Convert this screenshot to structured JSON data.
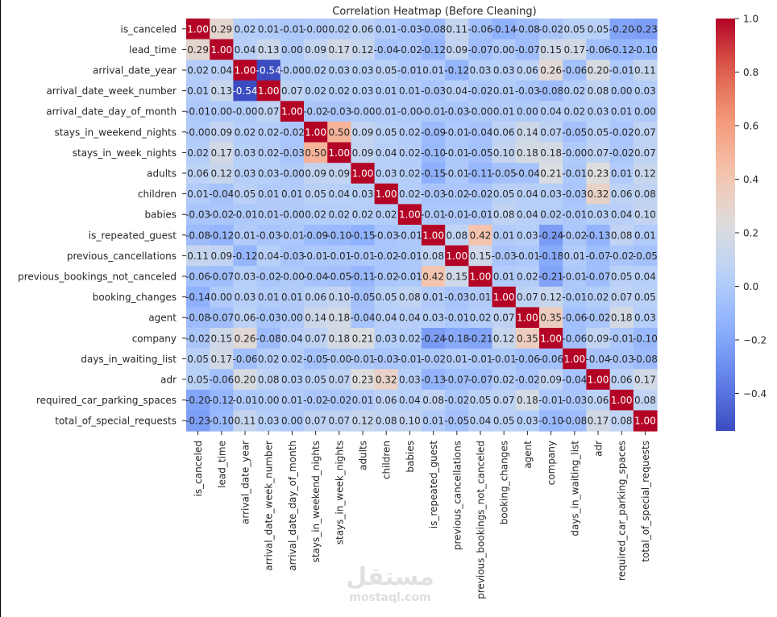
{
  "chart_data": {
    "type": "heatmap",
    "title": "Correlation Heatmap (Before Cleaning)",
    "labels": [
      "is_canceled",
      "lead_time",
      "arrival_date_year",
      "arrival_date_week_number",
      "arrival_date_day_of_month",
      "stays_in_weekend_nights",
      "stays_in_week_nights",
      "adults",
      "children",
      "babies",
      "is_repeated_guest",
      "previous_cancellations",
      "previous_bookings_not_canceled",
      "booking_changes",
      "agent",
      "company",
      "days_in_waiting_list",
      "adr",
      "required_car_parking_spaces",
      "total_of_special_requests"
    ],
    "values": [
      [
        1.0,
        0.29,
        0.02,
        0.01,
        -0.01,
        -0.0,
        0.02,
        0.06,
        0.01,
        -0.03,
        -0.08,
        0.11,
        -0.06,
        -0.14,
        -0.08,
        -0.02,
        0.05,
        0.05,
        -0.2,
        -0.23
      ],
      [
        0.29,
        1.0,
        0.04,
        0.13,
        0.0,
        0.09,
        0.17,
        0.12,
        -0.04,
        -0.02,
        -0.12,
        0.09,
        -0.07,
        0.0,
        -0.07,
        0.15,
        0.17,
        -0.06,
        -0.12,
        -0.1
      ],
      [
        0.02,
        0.04,
        1.0,
        -0.54,
        -0.0,
        0.02,
        0.03,
        0.03,
        0.05,
        -0.01,
        0.01,
        -0.12,
        0.03,
        0.03,
        0.06,
        0.26,
        -0.06,
        0.2,
        -0.01,
        0.11
      ],
      [
        0.01,
        0.13,
        -0.54,
        1.0,
        0.07,
        0.02,
        0.02,
        0.03,
        0.01,
        0.01,
        -0.03,
        0.04,
        -0.02,
        0.01,
        -0.03,
        -0.08,
        0.02,
        0.08,
        0.0,
        0.03
      ],
      [
        -0.01,
        0.0,
        -0.0,
        0.07,
        1.0,
        -0.02,
        -0.03,
        -0.0,
        0.01,
        -0.0,
        -0.01,
        -0.03,
        -0.0,
        0.01,
        0.0,
        0.04,
        0.02,
        0.03,
        0.01,
        0.0
      ],
      [
        -0.0,
        0.09,
        0.02,
        0.02,
        -0.02,
        1.0,
        0.5,
        0.09,
        0.05,
        0.02,
        -0.09,
        -0.01,
        -0.04,
        0.06,
        0.14,
        0.07,
        -0.05,
        0.05,
        -0.02,
        0.07
      ],
      [
        0.02,
        0.17,
        0.03,
        0.02,
        -0.03,
        0.5,
        1.0,
        0.09,
        0.04,
        0.02,
        -0.1,
        -0.01,
        -0.05,
        0.1,
        0.18,
        0.18,
        -0.0,
        0.07,
        -0.02,
        0.07
      ],
      [
        0.06,
        0.12,
        0.03,
        0.03,
        -0.0,
        0.09,
        0.09,
        1.0,
        0.03,
        0.02,
        -0.15,
        -0.01,
        -0.11,
        -0.05,
        -0.04,
        0.21,
        -0.01,
        0.23,
        0.01,
        0.12
      ],
      [
        0.01,
        -0.04,
        0.05,
        0.01,
        0.01,
        0.05,
        0.04,
        0.03,
        1.0,
        0.02,
        -0.03,
        -0.02,
        -0.02,
        0.05,
        0.04,
        0.03,
        -0.03,
        0.32,
        0.06,
        0.08
      ],
      [
        -0.03,
        -0.02,
        -0.01,
        0.01,
        -0.0,
        0.02,
        0.02,
        0.02,
        0.02,
        1.0,
        -0.01,
        -0.01,
        -0.01,
        0.08,
        0.04,
        0.02,
        -0.01,
        0.03,
        0.04,
        0.1
      ],
      [
        -0.08,
        -0.12,
        0.01,
        -0.03,
        -0.01,
        -0.09,
        -0.1,
        -0.15,
        -0.03,
        -0.01,
        1.0,
        0.08,
        0.42,
        0.01,
        0.03,
        -0.24,
        -0.02,
        -0.13,
        0.08,
        0.01
      ],
      [
        0.11,
        0.09,
        -0.12,
        0.04,
        -0.03,
        -0.01,
        -0.01,
        -0.01,
        -0.02,
        -0.01,
        0.08,
        1.0,
        0.15,
        -0.03,
        -0.01,
        -0.18,
        0.01,
        -0.07,
        -0.02,
        -0.05
      ],
      [
        -0.06,
        -0.07,
        0.03,
        -0.02,
        -0.0,
        -0.04,
        -0.05,
        -0.11,
        -0.02,
        -0.01,
        0.42,
        0.15,
        1.0,
        0.01,
        0.02,
        -0.21,
        -0.01,
        -0.07,
        0.05,
        0.04
      ],
      [
        -0.14,
        0.0,
        0.03,
        0.01,
        0.01,
        0.06,
        0.1,
        -0.05,
        0.05,
        0.08,
        0.01,
        -0.03,
        0.01,
        1.0,
        0.07,
        0.12,
        -0.01,
        0.02,
        0.07,
        0.05
      ],
      [
        -0.08,
        -0.07,
        0.06,
        -0.03,
        0.0,
        0.14,
        0.18,
        -0.04,
        0.04,
        0.04,
        0.03,
        -0.01,
        0.02,
        0.07,
        1.0,
        0.35,
        -0.06,
        -0.02,
        0.18,
        0.03
      ],
      [
        -0.02,
        0.15,
        0.26,
        -0.08,
        0.04,
        0.07,
        0.18,
        0.21,
        0.03,
        0.02,
        -0.24,
        -0.18,
        -0.21,
        0.12,
        0.35,
        1.0,
        -0.06,
        0.09,
        -0.01,
        -0.1
      ],
      [
        0.05,
        0.17,
        -0.06,
        0.02,
        0.02,
        -0.05,
        -0.0,
        -0.01,
        -0.03,
        -0.01,
        -0.02,
        0.01,
        -0.01,
        -0.01,
        -0.06,
        -0.06,
        1.0,
        -0.04,
        -0.03,
        -0.08
      ],
      [
        0.05,
        -0.06,
        0.2,
        0.08,
        0.03,
        0.05,
        0.07,
        0.23,
        0.32,
        0.03,
        -0.13,
        -0.07,
        -0.07,
        0.02,
        -0.02,
        0.09,
        -0.04,
        1.0,
        0.06,
        0.17
      ],
      [
        -0.2,
        -0.12,
        -0.01,
        0.0,
        0.01,
        -0.02,
        -0.02,
        0.01,
        0.06,
        0.04,
        0.08,
        -0.02,
        0.05,
        0.07,
        0.18,
        -0.01,
        -0.03,
        0.06,
        1.0,
        0.08
      ],
      [
        -0.23,
        -0.1,
        0.11,
        0.03,
        0.0,
        0.07,
        0.07,
        0.12,
        0.08,
        0.1,
        0.01,
        -0.05,
        0.04,
        0.05,
        0.03,
        -0.1,
        -0.08,
        0.17,
        0.08,
        1.0
      ]
    ],
    "colormap": "coolwarm",
    "colorbar": {
      "range": [
        -0.54,
        1.0
      ],
      "ticks": [
        "1.0",
        "0.8",
        "0.6",
        "0.4",
        "0.2",
        "0.0",
        "−0.2",
        "−0.4"
      ]
    },
    "annotate": true,
    "value_format": "2 decimals"
  },
  "colors": {
    "low": "#3b4cc0",
    "mid": "#dddddd",
    "high": "#b40426"
  },
  "watermark": {
    "arabic": "مستقل",
    "latin": "mostaql.com"
  }
}
